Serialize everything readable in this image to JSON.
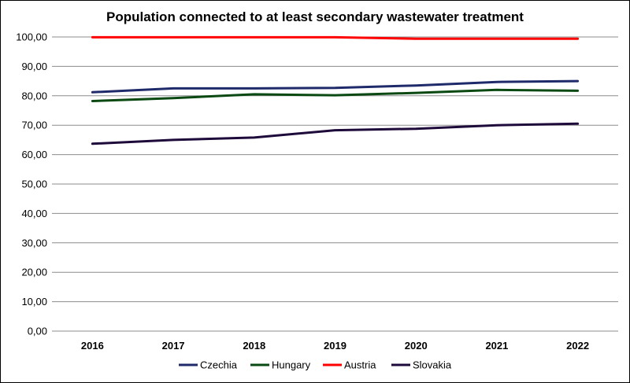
{
  "chart_data": {
    "type": "line",
    "title": "Population connected to at least secondary wastewater treatment",
    "xlabel": "",
    "ylabel": "",
    "categories": [
      "2016",
      "2017",
      "2018",
      "2019",
      "2020",
      "2021",
      "2022"
    ],
    "ylim": [
      0,
      100
    ],
    "yticks": [
      "0,00",
      "10,00",
      "20,00",
      "30,00",
      "40,00",
      "50,00",
      "60,00",
      "70,00",
      "80,00",
      "90,00",
      "100,00"
    ],
    "grid": true,
    "legend_position": "bottom",
    "series": [
      {
        "name": "Czechia",
        "color": "#1f2a6b",
        "values": [
          81.2,
          82.5,
          82.5,
          82.7,
          83.5,
          84.7,
          85.0
        ]
      },
      {
        "name": "Hungary",
        "color": "#0a4a12",
        "values": [
          78.2,
          79.2,
          80.5,
          80.2,
          81.0,
          82.0,
          81.7
        ]
      },
      {
        "name": "Austria",
        "color": "#ff0000",
        "values": [
          99.9,
          99.9,
          99.9,
          99.9,
          99.4,
          99.4,
          99.4
        ]
      },
      {
        "name": "Slovakia",
        "color": "#1e0a3a",
        "values": [
          63.7,
          65.0,
          65.8,
          68.3,
          68.8,
          70.0,
          70.5
        ]
      }
    ]
  }
}
